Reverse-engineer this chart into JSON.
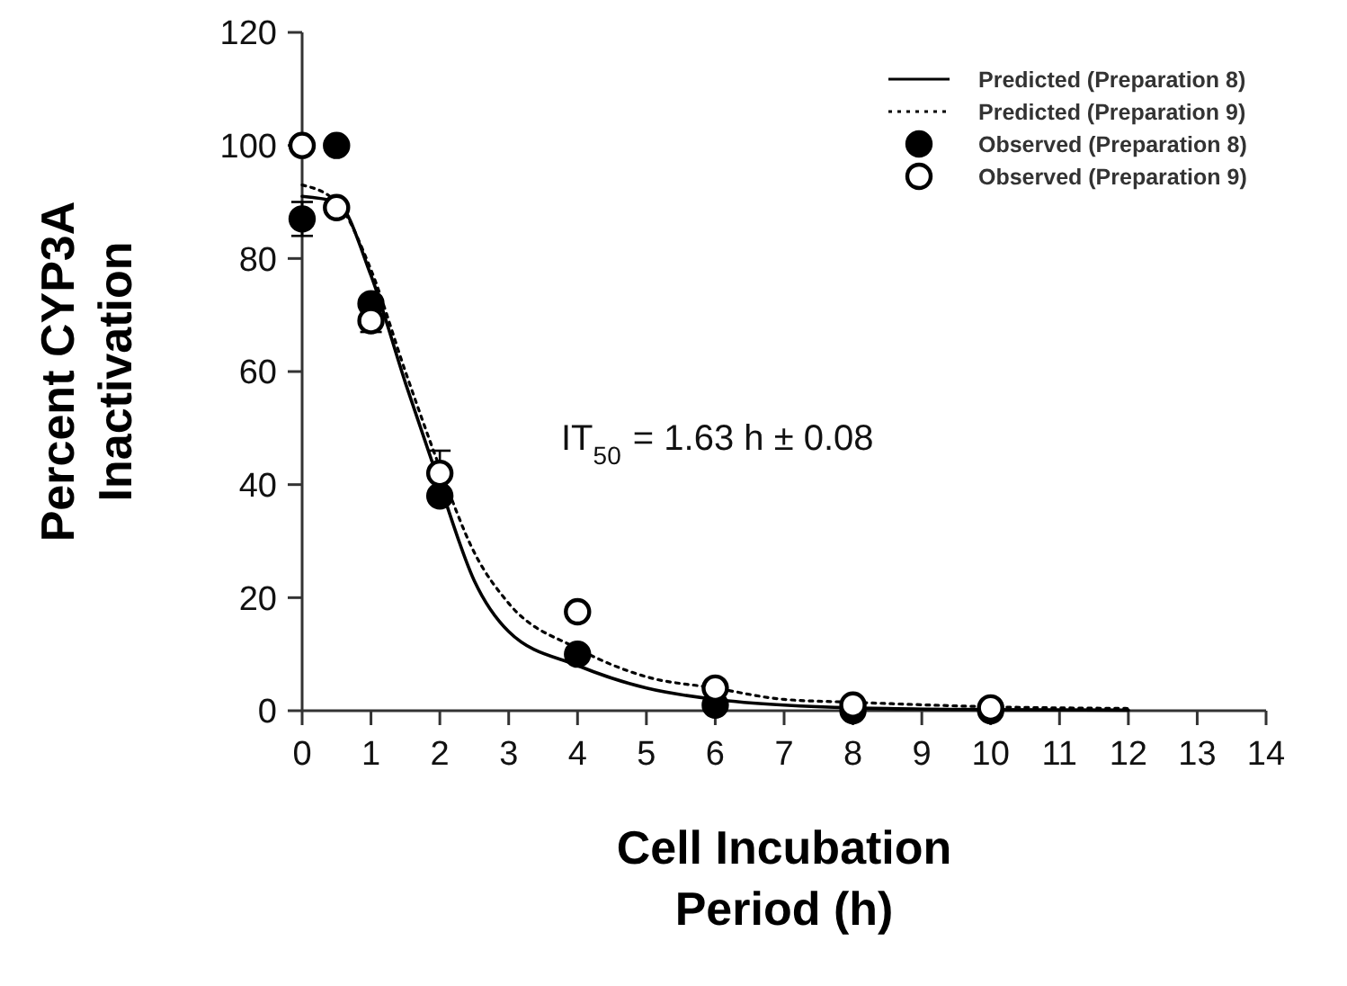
{
  "chart_data": {
    "type": "scatter",
    "xlabel": "Cell Incubation Period (h)",
    "ylabel": "Percent CYP3A Inactivation",
    "xlim": [
      0,
      14
    ],
    "xticks": [
      0,
      1,
      2,
      3,
      4,
      5,
      6,
      7,
      8,
      9,
      10,
      11,
      12,
      13,
      14
    ],
    "ylim": [
      0,
      120
    ],
    "yticks": [
      0,
      20,
      40,
      60,
      80,
      100,
      120
    ],
    "grid": false,
    "legend": "top right",
    "annotations": [
      "IT$_{50}$ = 1.63 h ± 0.08"
    ],
    "series": [
      {
        "name": "Predicted (Preparation 8)",
        "type": "line",
        "line_style": "solid",
        "marker": "none",
        "color": "#000000",
        "x": [
          0,
          0.5,
          1,
          1.5,
          2,
          2.5,
          3,
          4,
          5,
          6,
          7,
          8,
          10,
          12
        ],
        "values": [
          91,
          90,
          77,
          58,
          40,
          23,
          14,
          8,
          4,
          2,
          1,
          0.5,
          0.2,
          0.1
        ]
      },
      {
        "name": "Predicted (Preparation 9)",
        "type": "line",
        "line_style": "dotted",
        "marker": "none",
        "color": "#000000",
        "x": [
          0,
          0.5,
          1,
          1.5,
          2,
          2.5,
          3,
          4,
          5,
          6,
          7,
          8,
          10,
          12
        ],
        "values": [
          93,
          90,
          78,
          60,
          43,
          28,
          19,
          11,
          6,
          4,
          2,
          1.5,
          0.7,
          0.4
        ]
      },
      {
        "name": "Observed (Preparation 8)",
        "marker": "circle",
        "color": "#000000",
        "x": [
          0,
          0.5,
          1,
          2,
          4,
          6,
          8,
          10
        ],
        "values": [
          87,
          100,
          72,
          38,
          10,
          1,
          0,
          0
        ],
        "errors": [
          3,
          null,
          null,
          null,
          null,
          null,
          null,
          null
        ]
      },
      {
        "name": "Observed (Preparation 9)",
        "marker": "circle",
        "color": "#ffffff",
        "x": [
          0,
          0.5,
          1,
          2,
          4,
          6,
          8,
          10
        ],
        "values": [
          100,
          89,
          69,
          42,
          17.5,
          4,
          1,
          0.5
        ],
        "errors": [
          null,
          null,
          2,
          4,
          null,
          null,
          null,
          null
        ]
      }
    ]
  }
}
